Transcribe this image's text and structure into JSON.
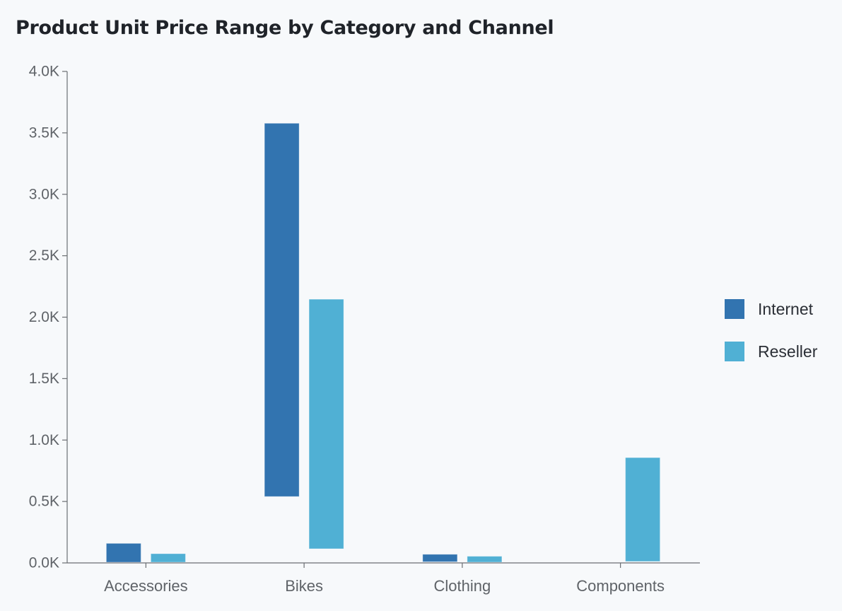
{
  "header": {
    "title": "Product Unit Price Range by Category and Channel"
  },
  "legend": {
    "items": [
      {
        "label": "Internet",
        "color": "#3274b0"
      },
      {
        "label": "Reseller",
        "color": "#50b0d4"
      }
    ]
  },
  "axis": {
    "y_ticks": [
      "0.0K",
      "0.5K",
      "1.0K",
      "1.5K",
      "2.0K",
      "2.5K",
      "3.0K",
      "3.5K",
      "4.0K"
    ],
    "x_ticks": [
      "Accessories",
      "Bikes",
      "Clothing",
      "Components"
    ]
  },
  "chart_data": {
    "type": "bar",
    "subtype": "floating-range",
    "title": "Product Unit Price Range by Category and Channel",
    "xlabel": "",
    "ylabel": "",
    "ylim": [
      0,
      4000
    ],
    "grid": false,
    "legend_position": "right",
    "categories": [
      "Accessories",
      "Bikes",
      "Clothing",
      "Components"
    ],
    "series": [
      {
        "name": "Internet",
        "color": "#3274b0",
        "min": [
          2,
          540,
          9,
          null
        ],
        "max": [
          159,
          3578,
          70,
          null
        ]
      },
      {
        "name": "Reseller",
        "color": "#50b0d4",
        "min": [
          1,
          115,
          6,
          12
        ],
        "max": [
          75,
          2146,
          54,
          857
        ]
      }
    ]
  }
}
